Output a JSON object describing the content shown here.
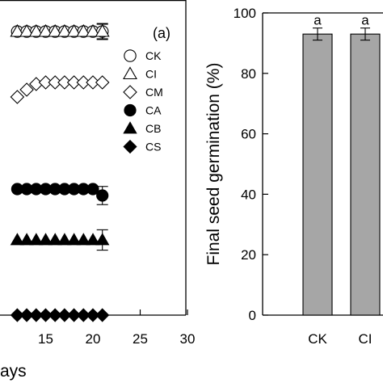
{
  "chart_data": [
    {
      "type": "scatter",
      "panel_label": "(a)",
      "xlabel": "ays",
      "ylabel": "",
      "xlim": [
        11.5,
        30
      ],
      "xticks": [
        15,
        20,
        25,
        30
      ],
      "y_mapping": "data values are the germination % shown on the right panel scale (0-100)",
      "ylim": [
        0,
        100
      ],
      "legend_position": "right",
      "series": [
        {
          "name": "CK",
          "marker": "circle-open",
          "x": [
            12,
            13,
            14,
            15,
            16,
            17,
            18,
            19,
            20,
            21
          ],
          "y": [
            93,
            93,
            93,
            93,
            93,
            93,
            93,
            93,
            93,
            93
          ],
          "err": [
            0,
            0,
            0,
            0,
            0,
            0,
            0,
            0,
            0,
            2
          ]
        },
        {
          "name": "CI",
          "marker": "triangle-open",
          "x": [
            12,
            13,
            14,
            15,
            16,
            17,
            18,
            19,
            20,
            21
          ],
          "y": [
            93,
            93,
            93,
            93,
            93,
            93,
            93,
            93,
            93,
            93
          ],
          "err": [
            0,
            0,
            0,
            0,
            0,
            0,
            0,
            0,
            0,
            2.2
          ]
        },
        {
          "name": "CM",
          "marker": "diamond-open",
          "x": [
            12,
            13,
            14,
            15,
            16,
            17,
            18,
            19,
            20,
            21
          ],
          "y": [
            75,
            78,
            82,
            84,
            84,
            84,
            84,
            84,
            84,
            84
          ],
          "err": [
            0,
            0,
            0,
            0,
            0,
            0,
            0,
            0,
            0,
            0
          ]
        },
        {
          "name": "CA",
          "marker": "circle-filled",
          "x": [
            12,
            13,
            14,
            15,
            16,
            17,
            18,
            19,
            20,
            21
          ],
          "y": [
            42,
            42,
            42,
            42,
            42,
            42,
            42,
            42,
            42,
            40
          ],
          "err": [
            0,
            0,
            0,
            0,
            0,
            0,
            0,
            0,
            0,
            2.5
          ]
        },
        {
          "name": "CB",
          "marker": "triangle-filled",
          "x": [
            12,
            13,
            14,
            15,
            16,
            17,
            18,
            19,
            20,
            21
          ],
          "y": [
            25,
            25,
            25,
            25,
            25,
            25,
            25,
            25,
            25,
            25
          ],
          "err": [
            0,
            0,
            0,
            0,
            0,
            0,
            0,
            0,
            0,
            2.8
          ]
        },
        {
          "name": "CS",
          "marker": "diamond-filled",
          "x": [
            12,
            13,
            14,
            15,
            16,
            17,
            18,
            19,
            20,
            21
          ],
          "y": [
            0,
            0,
            0,
            0,
            0,
            0,
            0,
            0,
            0,
            0
          ],
          "err": [
            0,
            0,
            0,
            0,
            0,
            0,
            0,
            0,
            0,
            0
          ]
        }
      ]
    },
    {
      "type": "bar",
      "ylabel": "Final seed germination (%)",
      "ylim": [
        0,
        100
      ],
      "yticks": [
        0,
        20,
        40,
        60,
        80,
        100
      ],
      "categories": [
        "CK",
        "CI"
      ],
      "values": [
        93,
        93
      ],
      "errors": [
        2,
        2
      ],
      "significance": [
        "a",
        "a"
      ],
      "bar_color": "#a6a6a6"
    }
  ]
}
